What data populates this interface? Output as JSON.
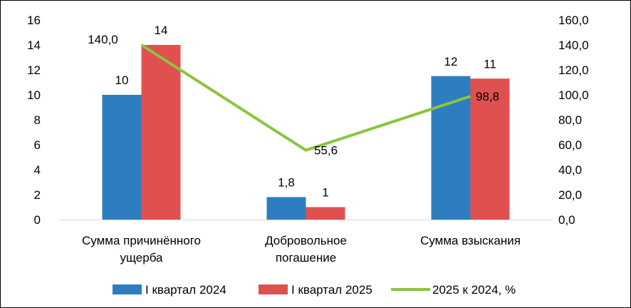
{
  "chart_data": {
    "type": "bar+line",
    "title": "",
    "categories": [
      [
        "Сумма причинённого",
        "ущерба"
      ],
      [
        "Добровольное",
        "погашение"
      ],
      [
        "Сумма взыскания"
      ]
    ],
    "series": [
      {
        "name": "I квартал 2024",
        "kind": "bar",
        "axis": "left",
        "color": "#2e7dc0",
        "values": [
          10,
          1.8,
          11.5
        ],
        "labels": [
          "10",
          "1,8",
          "12"
        ]
      },
      {
        "name": "I квартал 2025",
        "kind": "bar",
        "axis": "left",
        "color": "#e0504f",
        "values": [
          14,
          1,
          11.3
        ],
        "labels": [
          "14",
          "1",
          "11"
        ]
      },
      {
        "name": "2025 к 2024, %",
        "kind": "line",
        "axis": "right",
        "color": "#8cc43f",
        "values": [
          140.0,
          55.6,
          98.8
        ],
        "labels": [
          "140,0",
          "55,6",
          "98,8"
        ]
      }
    ],
    "left_axis": {
      "ylim": [
        0,
        16
      ],
      "ticks": [
        "0",
        "2",
        "4",
        "6",
        "8",
        "10",
        "12",
        "14",
        "16"
      ]
    },
    "right_axis": {
      "ylim": [
        0,
        160
      ],
      "ticks": [
        "0,0",
        "20,0",
        "40,0",
        "60,0",
        "80,0",
        "100,0",
        "120,0",
        "140,0",
        "160,0"
      ]
    },
    "grid": false,
    "legend": "bottom"
  }
}
